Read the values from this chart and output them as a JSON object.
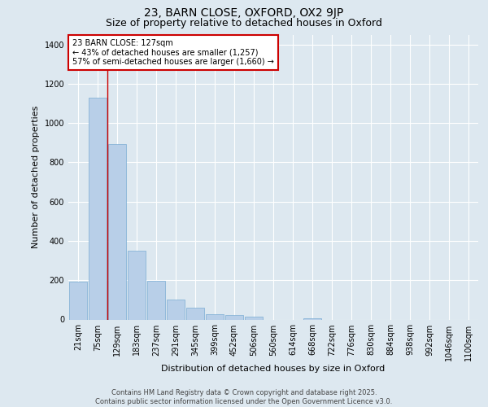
{
  "title1": "23, BARN CLOSE, OXFORD, OX2 9JP",
  "title2": "Size of property relative to detached houses in Oxford",
  "xlabel": "Distribution of detached houses by size in Oxford",
  "ylabel": "Number of detached properties",
  "categories": [
    "21sqm",
    "75sqm",
    "129sqm",
    "183sqm",
    "237sqm",
    "291sqm",
    "345sqm",
    "399sqm",
    "452sqm",
    "506sqm",
    "560sqm",
    "614sqm",
    "668sqm",
    "722sqm",
    "776sqm",
    "830sqm",
    "884sqm",
    "938sqm",
    "992sqm",
    "1046sqm",
    "1100sqm"
  ],
  "values": [
    193,
    1130,
    893,
    350,
    195,
    100,
    60,
    25,
    22,
    13,
    0,
    0,
    8,
    0,
    0,
    0,
    0,
    0,
    0,
    0,
    0
  ],
  "bar_color": "#b8cfe8",
  "bar_edge_color": "#7aadd4",
  "background_color": "#dde8f0",
  "grid_color": "#ffffff",
  "vline_x": 1.5,
  "vline_color": "#cc0000",
  "annotation_box_text": "23 BARN CLOSE: 127sqm\n← 43% of detached houses are smaller (1,257)\n57% of semi-detached houses are larger (1,660) →",
  "footer_line1": "Contains HM Land Registry data © Crown copyright and database right 2025.",
  "footer_line2": "Contains public sector information licensed under the Open Government Licence v3.0.",
  "ylim": [
    0,
    1450
  ],
  "yticks": [
    0,
    200,
    400,
    600,
    800,
    1000,
    1200,
    1400
  ],
  "title_fontsize": 10,
  "subtitle_fontsize": 9,
  "axis_label_fontsize": 8,
  "tick_fontsize": 7,
  "annotation_fontsize": 7,
  "footer_fontsize": 6
}
